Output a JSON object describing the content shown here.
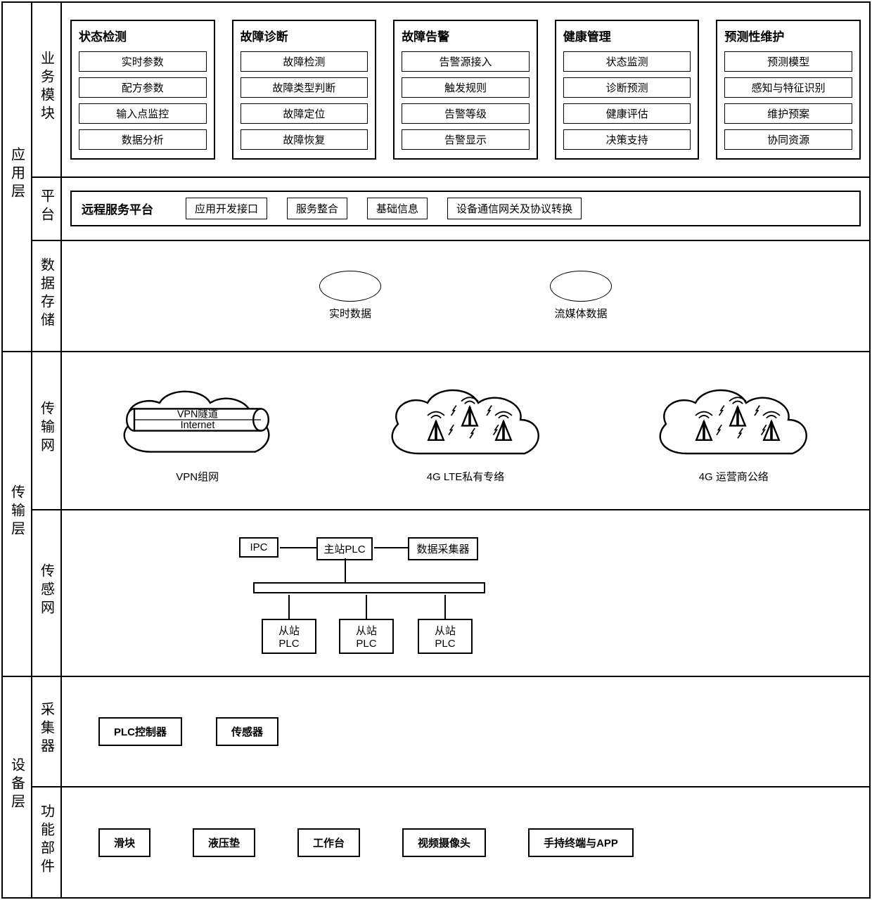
{
  "layers": {
    "app": "应用层",
    "transport": "传输层",
    "device": "设备层"
  },
  "app": {
    "biz": {
      "label": "业务模块",
      "cols": [
        {
          "title": "状态检测",
          "items": [
            "实时参数",
            "配方参数",
            "输入点监控",
            "数据分析"
          ]
        },
        {
          "title": "故障诊断",
          "items": [
            "故障检测",
            "故障类型判断",
            "故障定位",
            "故障恢复"
          ]
        },
        {
          "title": "故障告警",
          "items": [
            "告警源接入",
            "触发规则",
            "告警等级",
            "告警显示"
          ]
        },
        {
          "title": "健康管理",
          "items": [
            "状态监测",
            "诊断预测",
            "健康评估",
            "决策支持"
          ]
        },
        {
          "title": "预测性维护",
          "items": [
            "预测模型",
            "感知与特征识别",
            "维护预案",
            "协同资源"
          ]
        }
      ]
    },
    "platform": {
      "label": "平台",
      "title": "远程服务平台",
      "items": [
        "应用开发接口",
        "服务整合",
        "基础信息",
        "设备通信网关及协议转换"
      ]
    },
    "storage": {
      "label": "数据存储",
      "items": [
        "实时数据",
        "流媒体数据"
      ]
    }
  },
  "transport": {
    "net": {
      "label": "传输网",
      "items": [
        {
          "label": "VPN组网",
          "kind": "vpn",
          "text1": "VPN隧道",
          "text2": "Internet"
        },
        {
          "label": "4G LTE私有专络",
          "kind": "lte"
        },
        {
          "label": "4G 运营商公络",
          "kind": "lte"
        }
      ]
    },
    "sensor": {
      "label": "传感网",
      "nodes": {
        "ipc": "IPC",
        "master": "主站PLC",
        "collector": "数据采集器",
        "slave": "从站PLC"
      }
    }
  },
  "device": {
    "collector": {
      "label": "采集器",
      "items": [
        "PLC控制器",
        "传感器"
      ]
    },
    "component": {
      "label": "功能部件",
      "items": [
        "滑块",
        "液压垫",
        "工作台",
        "视频摄像头",
        "手持终端与APP"
      ]
    }
  },
  "style": {
    "border_color": "#000000",
    "bg_color": "#ffffff",
    "font_main": 15,
    "font_title": 17,
    "font_layer": 20
  }
}
